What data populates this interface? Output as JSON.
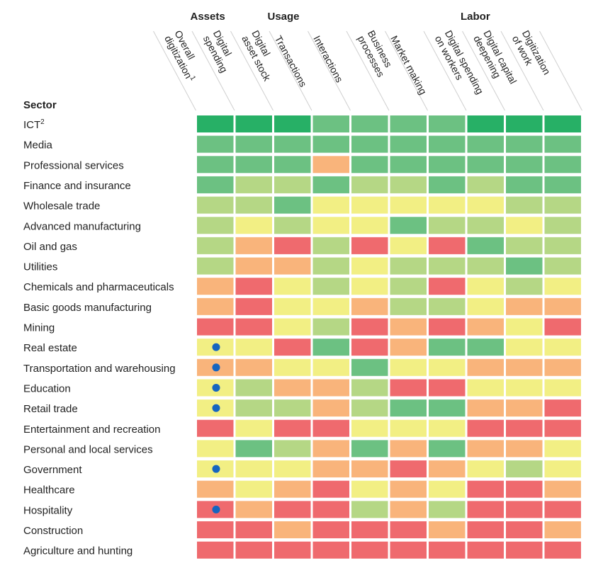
{
  "chart_data": {
    "type": "heatmap",
    "row_header": "Sector",
    "groups": [
      {
        "label": "Assets",
        "columns": [
          0,
          1
        ]
      },
      {
        "label": "Usage",
        "columns": [
          2,
          3,
          4,
          5,
          6
        ]
      },
      {
        "label": "Labor",
        "columns": [
          7,
          8,
          9
        ]
      }
    ],
    "columns": [
      {
        "lines": [
          "Overall",
          "digitization"
        ],
        "sup": "1"
      },
      {
        "lines": [
          "Digital",
          "spending"
        ]
      },
      {
        "lines": [
          "Digital",
          "asset stock"
        ]
      },
      {
        "lines": [
          "Transactions"
        ]
      },
      {
        "lines": [
          "Interactions"
        ]
      },
      {
        "lines": [
          "Business",
          "processes"
        ]
      },
      {
        "lines": [
          "Market making"
        ]
      },
      {
        "lines": [
          "Digital spending",
          "on workers"
        ]
      },
      {
        "lines": [
          "Digital capital",
          "deepening"
        ]
      },
      {
        "lines": [
          "Digitization",
          "of work"
        ]
      }
    ],
    "rows": [
      {
        "label": "ICT",
        "sup": "2"
      },
      {
        "label": "Media"
      },
      {
        "label": "Professional services"
      },
      {
        "label": "Finance and insurance"
      },
      {
        "label": "Wholesale trade"
      },
      {
        "label": "Advanced manufacturing"
      },
      {
        "label": "Oil and gas"
      },
      {
        "label": "Utilities"
      },
      {
        "label": "Chemicals and pharmaceuticals"
      },
      {
        "label": "Basic goods manufacturing"
      },
      {
        "label": "Mining"
      },
      {
        "label": "Real estate"
      },
      {
        "label": "Transportation and warehousing"
      },
      {
        "label": "Education"
      },
      {
        "label": "Retail trade"
      },
      {
        "label": "Entertainment and recreation"
      },
      {
        "label": "Personal and local services"
      },
      {
        "label": "Government"
      },
      {
        "label": "Healthcare"
      },
      {
        "label": "Hospitality"
      },
      {
        "label": "Construction"
      },
      {
        "label": "Agriculture and hunting"
      }
    ],
    "level_colors": {
      "1": "#ef6a6e",
      "2": "#f9b47b",
      "3": "#f2ef84",
      "4": "#b5d785",
      "5": "#6cc182",
      "6": "#27b066"
    },
    "values": [
      [
        6,
        6,
        6,
        5,
        5,
        5,
        5,
        6,
        6,
        6
      ],
      [
        5,
        5,
        5,
        5,
        5,
        5,
        5,
        5,
        5,
        5
      ],
      [
        5,
        5,
        5,
        2,
        5,
        5,
        5,
        5,
        5,
        5
      ],
      [
        5,
        4,
        4,
        5,
        4,
        4,
        5,
        4,
        5,
        5
      ],
      [
        4,
        4,
        5,
        3,
        3,
        3,
        3,
        3,
        4,
        4
      ],
      [
        4,
        3,
        4,
        3,
        3,
        5,
        4,
        4,
        3,
        4
      ],
      [
        4,
        2,
        1,
        4,
        1,
        3,
        1,
        5,
        4,
        4
      ],
      [
        4,
        2,
        2,
        4,
        3,
        4,
        4,
        4,
        5,
        4
      ],
      [
        2,
        1,
        3,
        4,
        3,
        4,
        1,
        3,
        4,
        3
      ],
      [
        2,
        1,
        3,
        3,
        2,
        4,
        4,
        3,
        2,
        2
      ],
      [
        1,
        1,
        3,
        4,
        1,
        2,
        1,
        2,
        3,
        1
      ],
      [
        3,
        3,
        1,
        5,
        1,
        2,
        5,
        5,
        3,
        3
      ],
      [
        2,
        2,
        3,
        3,
        5,
        3,
        3,
        2,
        2,
        2
      ],
      [
        3,
        4,
        2,
        2,
        4,
        1,
        1,
        3,
        3,
        3
      ],
      [
        3,
        4,
        4,
        2,
        4,
        5,
        5,
        2,
        2,
        1
      ],
      [
        1,
        3,
        1,
        1,
        3,
        3,
        3,
        1,
        1,
        1
      ],
      [
        3,
        5,
        4,
        2,
        5,
        2,
        5,
        2,
        2,
        3
      ],
      [
        3,
        3,
        3,
        2,
        2,
        1,
        2,
        3,
        4,
        3
      ],
      [
        2,
        3,
        2,
        1,
        3,
        2,
        3,
        1,
        1,
        2
      ],
      [
        1,
        2,
        1,
        1,
        4,
        2,
        4,
        1,
        1,
        1
      ],
      [
        1,
        1,
        2,
        1,
        1,
        1,
        2,
        1,
        1,
        2
      ],
      [
        1,
        1,
        1,
        1,
        1,
        1,
        1,
        1,
        1,
        1
      ]
    ],
    "dot_color": "#1565c0",
    "dot_rows": [
      11,
      12,
      13,
      14,
      17,
      19
    ],
    "dot_column": 0
  }
}
